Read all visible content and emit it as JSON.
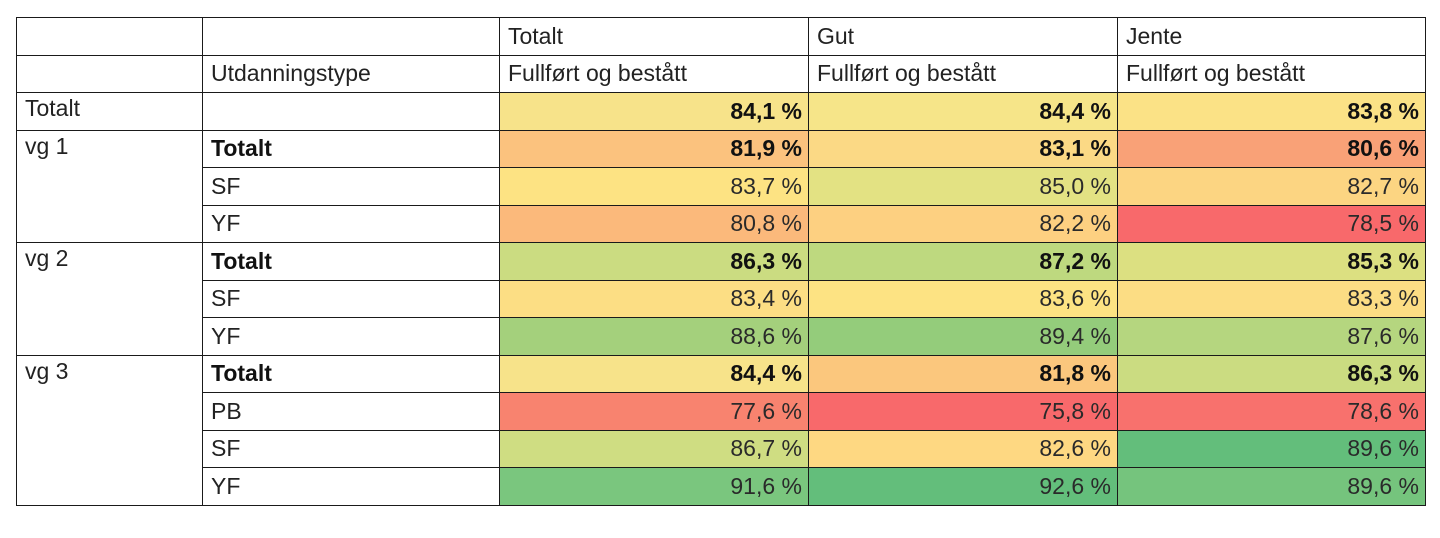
{
  "table": {
    "group_headers": [
      "",
      "",
      "Totalt",
      "Gut",
      "Jente"
    ],
    "column_headers": [
      "",
      "Utdanningstype",
      "Fullført og bestått",
      "Fullført og bestått",
      "Fullført og bestått"
    ],
    "rows": [
      {
        "group": "Totalt",
        "type": "",
        "bold": false,
        "values": [
          "84,1 %",
          "84,4 %",
          "83,8 %"
        ],
        "colors": [
          "#f7e38a",
          "#f6e589",
          "#fbe286"
        ],
        "value_bold": true
      },
      {
        "group": "vg 1",
        "type": "Totalt",
        "bold": true,
        "values": [
          "81,9 %",
          "83,1 %",
          "80,6 %"
        ],
        "colors": [
          "#fbc27e",
          "#fbd985",
          "#f9a177"
        ],
        "value_bold": true
      },
      {
        "group": "",
        "type": "SF",
        "bold": false,
        "values": [
          "83,7 %",
          "85,0 %",
          "82,7 %"
        ],
        "colors": [
          "#fde383",
          "#e3e283",
          "#fcd582"
        ]
      },
      {
        "group": "",
        "type": "YF",
        "bold": false,
        "values": [
          "80,8 %",
          "82,2 %",
          "78,5 %"
        ],
        "colors": [
          "#fbb97b",
          "#fdd081",
          "#f8696b"
        ]
      },
      {
        "group": "vg 2",
        "type": "Totalt",
        "bold": true,
        "values": [
          "86,3 %",
          "87,2 %",
          "85,3 %"
        ],
        "colors": [
          "#cbdc81",
          "#bed97f",
          "#dce081"
        ],
        "value_bold": true
      },
      {
        "group": "",
        "type": "SF",
        "bold": false,
        "values": [
          "83,4 %",
          "83,6 %",
          "83,3 %"
        ],
        "colors": [
          "#fcde84",
          "#fde383",
          "#fcdd84"
        ]
      },
      {
        "group": "",
        "type": "YF",
        "bold": false,
        "values": [
          "88,6 %",
          "89,4 %",
          "87,6 %"
        ],
        "colors": [
          "#a4d07c",
          "#94cc7b",
          "#b5d67f"
        ]
      },
      {
        "group": "vg 3",
        "type": "Totalt",
        "bold": true,
        "values": [
          "84,4 %",
          "81,8 %",
          "86,3 %"
        ],
        "colors": [
          "#f7e38a",
          "#fbc77d",
          "#cbdc81"
        ],
        "value_bold": true
      },
      {
        "group": "",
        "type": "PB",
        "bold": false,
        "values": [
          "77,6 %",
          "75,8 %",
          "78,6 %"
        ],
        "colors": [
          "#f8836f",
          "#f8696b",
          "#f8716d"
        ]
      },
      {
        "group": "",
        "type": "SF",
        "bold": false,
        "values": [
          "86,7 %",
          "82,6 %",
          "89,6 %"
        ],
        "colors": [
          "#cfdd82",
          "#fed882",
          "#63be7b"
        ]
      },
      {
        "group": "",
        "type": "YF",
        "bold": false,
        "values": [
          "91,6 %",
          "92,6 %",
          "89,6 %"
        ],
        "colors": [
          "#7ac67e",
          "#63be7b",
          "#75c47d"
        ]
      }
    ]
  }
}
